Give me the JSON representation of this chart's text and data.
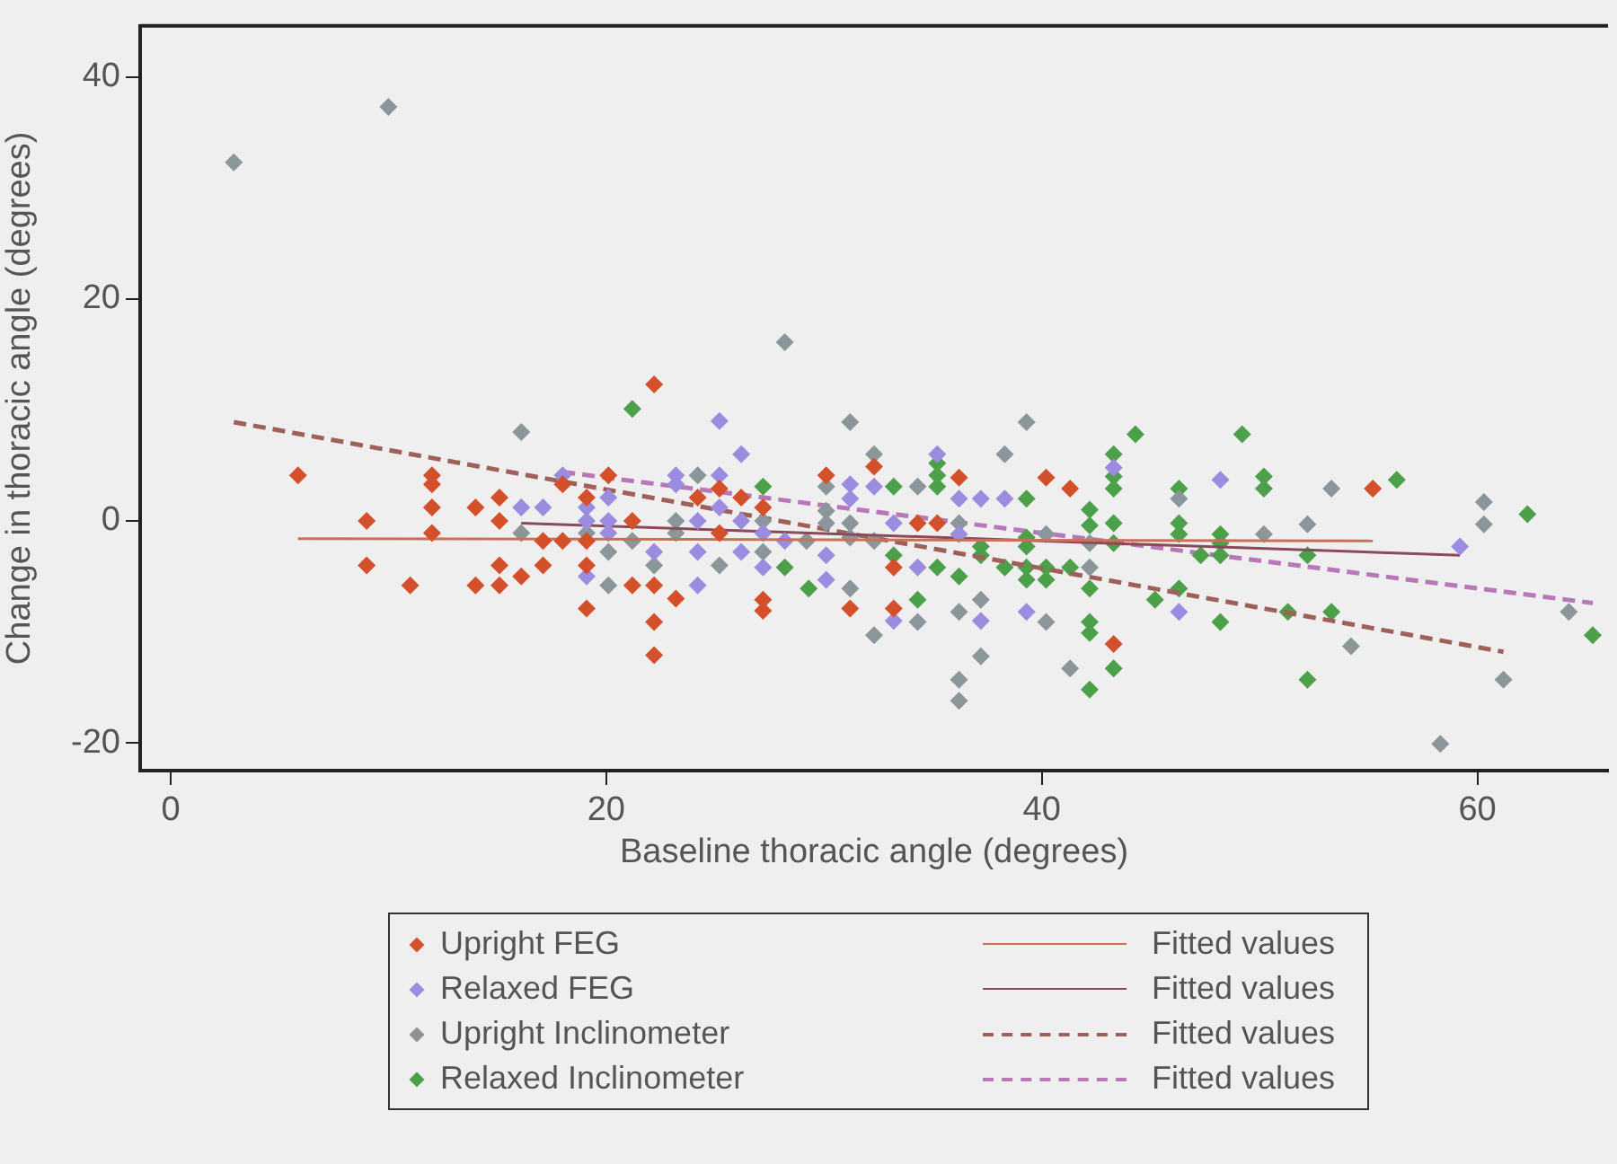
{
  "chart_data": {
    "type": "scatter",
    "xlabel": "Baseline thoracic angle (degrees)",
    "ylabel": "Change in thoracic angle (degrees)",
    "xlim": [
      -1.4,
      66
    ],
    "ylim": [
      -22.5,
      44.6
    ],
    "xticks": [
      0,
      20,
      40,
      60
    ],
    "yticks": [
      -20,
      0,
      20,
      40
    ],
    "grid": false,
    "legend": "bottom",
    "marker": "diamond",
    "series": [
      {
        "name": "Upright FEG",
        "color": "#d4502a",
        "x": [
          5.85,
          9.0,
          9.0,
          11.0,
          12.0,
          12.0,
          12.0,
          12.0,
          14.0,
          14.0,
          15.1,
          15.1,
          15.1,
          15.1,
          16.1,
          17.1,
          17.1,
          18.0,
          18.0,
          19.1,
          19.1,
          19.1,
          19.1,
          20.1,
          21.2,
          21.2,
          22.2,
          22.2,
          22.2,
          22.2,
          23.2,
          24.2,
          25.2,
          25.2,
          26.2,
          27.2,
          27.2,
          27.2,
          30.1,
          32.3,
          33.2,
          33.2,
          31.2,
          34.3,
          35.2,
          36.2,
          40.2,
          41.3,
          43.3,
          55.2
        ],
        "values": [
          4.1,
          0,
          -4,
          -5.8,
          4.1,
          3.3,
          1.2,
          -1.1,
          1.2,
          -5.8,
          2.1,
          0,
          -4,
          -5.8,
          -5.0,
          -1.8,
          -4,
          -1.8,
          3.3,
          2.1,
          -1.8,
          -4,
          -7.9,
          4.1,
          0,
          -5.8,
          12.3,
          -5.8,
          -9.1,
          -12.1,
          -7.0,
          2.1,
          2.9,
          -1.1,
          2.1,
          1.2,
          -7.1,
          -8.1,
          4.1,
          4.9,
          -4.2,
          -7.9,
          -7.9,
          -0.2,
          -0.2,
          3.9,
          3.9,
          2.9,
          -11.1,
          2.9
        ]
      },
      {
        "name": "Fitted values",
        "type": "line",
        "color": "#c8705a",
        "line_style": "solid",
        "marker": "none",
        "x": [
          5.85,
          55.2
        ],
        "values": [
          -1.6,
          -1.8
        ]
      },
      {
        "name": "Relaxed FEG",
        "color": "#9b8ce0",
        "x": [
          16.1,
          17.1,
          18.0,
          19.1,
          19.1,
          19.1,
          20.1,
          20.1,
          20.1,
          22.2,
          23.2,
          23.2,
          24.2,
          24.2,
          24.2,
          25.2,
          25.2,
          25.2,
          26.2,
          26.2,
          26.2,
          27.2,
          27.2,
          28.2,
          31.2,
          31.2,
          30.1,
          30.1,
          32.3,
          33.2,
          33.2,
          34.3,
          35.2,
          36.2,
          36.2,
          37.2,
          38.3,
          37.2,
          39.3,
          43.3,
          46.3,
          48.2,
          59.2
        ],
        "values": [
          1.2,
          1.2,
          4.1,
          1.2,
          0,
          -5.0,
          2.1,
          0,
          -1.1,
          -2.8,
          4.1,
          3.3,
          0,
          -2.8,
          -5.8,
          9.0,
          4.1,
          1.2,
          6.0,
          0,
          -2.8,
          -1.1,
          -4.2,
          -1.8,
          3.3,
          2.0,
          -3.1,
          -5.3,
          3.1,
          -0.2,
          -9.0,
          -4.2,
          6.0,
          2.0,
          -1.2,
          2.0,
          2.0,
          -9.0,
          -8.2,
          4.8,
          -8.2,
          3.7,
          -2.3
        ]
      },
      {
        "name": "Fitted values",
        "type": "line",
        "color": "#8a4a5a",
        "line_style": "solid",
        "marker": "none",
        "x": [
          16.1,
          59.2
        ],
        "values": [
          -0.2,
          -3.1
        ]
      },
      {
        "name": "Upright Inclinometer",
        "color": "#8a969a",
        "x": [
          2.9,
          10.0,
          28.2,
          16.1,
          16.1,
          19.1,
          20.1,
          20.1,
          21.2,
          22.2,
          23.2,
          23.2,
          24.2,
          25.2,
          27.2,
          27.2,
          31.2,
          30.1,
          30.1,
          30.1,
          29.2,
          31.2,
          31.2,
          32.3,
          32.3,
          32.3,
          31.2,
          34.3,
          34.3,
          36.2,
          36.2,
          36.2,
          36.2,
          37.2,
          37.2,
          38.3,
          39.3,
          40.2,
          40.2,
          41.3,
          42.2,
          42.2,
          46.3,
          50.2,
          52.2,
          53.3,
          54.2,
          58.3,
          60.3,
          60.3,
          61.2,
          64.2
        ],
        "values": [
          32.3,
          37.3,
          16.1,
          8.0,
          -1.1,
          -1.1,
          -2.8,
          -5.8,
          -1.8,
          -4,
          0,
          -1.1,
          4.1,
          -4,
          0,
          -2.8,
          8.9,
          3.1,
          0.9,
          -0.2,
          -1.8,
          -0.2,
          -1.5,
          6.0,
          -1.8,
          -10.3,
          -6.1,
          3.1,
          -9.1,
          -0.2,
          -8.2,
          -14.3,
          -16.2,
          -7.1,
          -12.2,
          6.0,
          8.9,
          -1.2,
          -9.1,
          -13.3,
          -2.0,
          -4.2,
          2.0,
          -1.2,
          -0.3,
          2.9,
          -11.3,
          -20.1,
          1.7,
          -0.3,
          -14.3,
          -8.2
        ]
      },
      {
        "name": "Fitted values",
        "type": "line",
        "color": "#a0605a",
        "line_style": "dashed",
        "marker": "none",
        "x": [
          2.9,
          61.2
        ],
        "values": [
          8.9,
          -11.8
        ]
      },
      {
        "name": "Relaxed Inclinometer",
        "color": "#4ca04a",
        "x": [
          21.2,
          27.2,
          28.2,
          29.3,
          33.2,
          33.2,
          34.3,
          35.2,
          35.2,
          35.2,
          35.2,
          36.2,
          37.2,
          37.2,
          38.3,
          39.3,
          39.3,
          39.3,
          39.3,
          39.3,
          40.2,
          40.2,
          41.3,
          42.2,
          42.2,
          42.2,
          42.2,
          42.2,
          42.2,
          43.3,
          43.3,
          43.3,
          43.3,
          43.3,
          43.3,
          44.3,
          45.2,
          46.3,
          46.3,
          46.3,
          46.3,
          47.3,
          48.2,
          48.2,
          48.2,
          48.2,
          49.2,
          50.2,
          50.2,
          51.3,
          52.2,
          52.2,
          53.3,
          56.3,
          62.3,
          65.3
        ],
        "values": [
          10.1,
          3.1,
          -4.2,
          -6.1,
          3.1,
          -3.1,
          -7.1,
          5.2,
          4.1,
          3.1,
          -4.2,
          -5.0,
          -2.3,
          -3.1,
          -4.2,
          2.0,
          -1.5,
          -2.3,
          -4.2,
          -5.3,
          -4.2,
          -5.3,
          -4.2,
          1.0,
          -0.4,
          -6.1,
          -9.1,
          -10.1,
          -15.2,
          6.0,
          4.0,
          2.9,
          -0.2,
          -2.0,
          -13.3,
          7.8,
          -7.1,
          2.9,
          -0.2,
          -1.2,
          -6.1,
          -3.1,
          -1.2,
          -2.0,
          -3.1,
          -9.1,
          7.8,
          4.0,
          2.9,
          -8.2,
          -3.1,
          -14.3,
          -8.2,
          3.7,
          0.6,
          -10.3
        ]
      },
      {
        "name": "Fitted values",
        "type": "line",
        "color": "#b878b8",
        "line_style": "dashed",
        "marker": "none",
        "x": [
          18.0,
          65.3
        ],
        "values": [
          4.4,
          -7.4
        ]
      }
    ]
  }
}
